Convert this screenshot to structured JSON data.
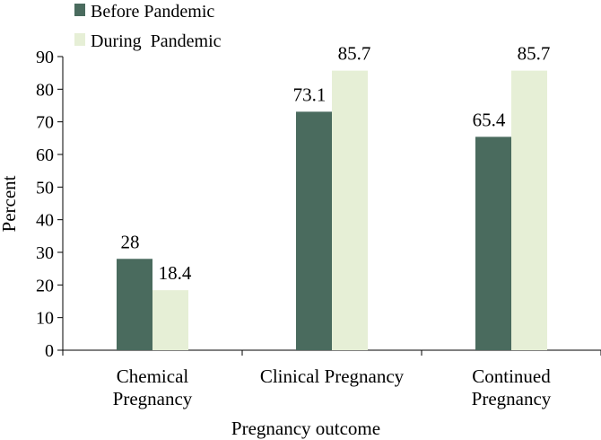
{
  "chart_data": {
    "type": "bar",
    "title": "",
    "xlabel": "Pregnancy outcome",
    "ylabel": "Percent",
    "ylim": [
      0,
      90
    ],
    "yticks": [
      0,
      10,
      20,
      30,
      40,
      50,
      60,
      70,
      80,
      90
    ],
    "grid": false,
    "legend_position": "top-left",
    "categories": [
      [
        "Chemical",
        "Pregnancy"
      ],
      [
        "Clinical Pregnancy"
      ],
      [
        "Continued",
        "Pregnancy"
      ]
    ],
    "series": [
      {
        "name": "Before Pandemic",
        "color": "#4a6b5e",
        "values": [
          28,
          73.1,
          65.4
        ],
        "labels": [
          "28",
          "73.1",
          "65.4"
        ]
      },
      {
        "name": "During  Pandemic",
        "color": "#e6efd6",
        "values": [
          18.4,
          85.7,
          85.7
        ],
        "labels": [
          "18.4",
          "85.7",
          "85.7"
        ]
      }
    ]
  }
}
